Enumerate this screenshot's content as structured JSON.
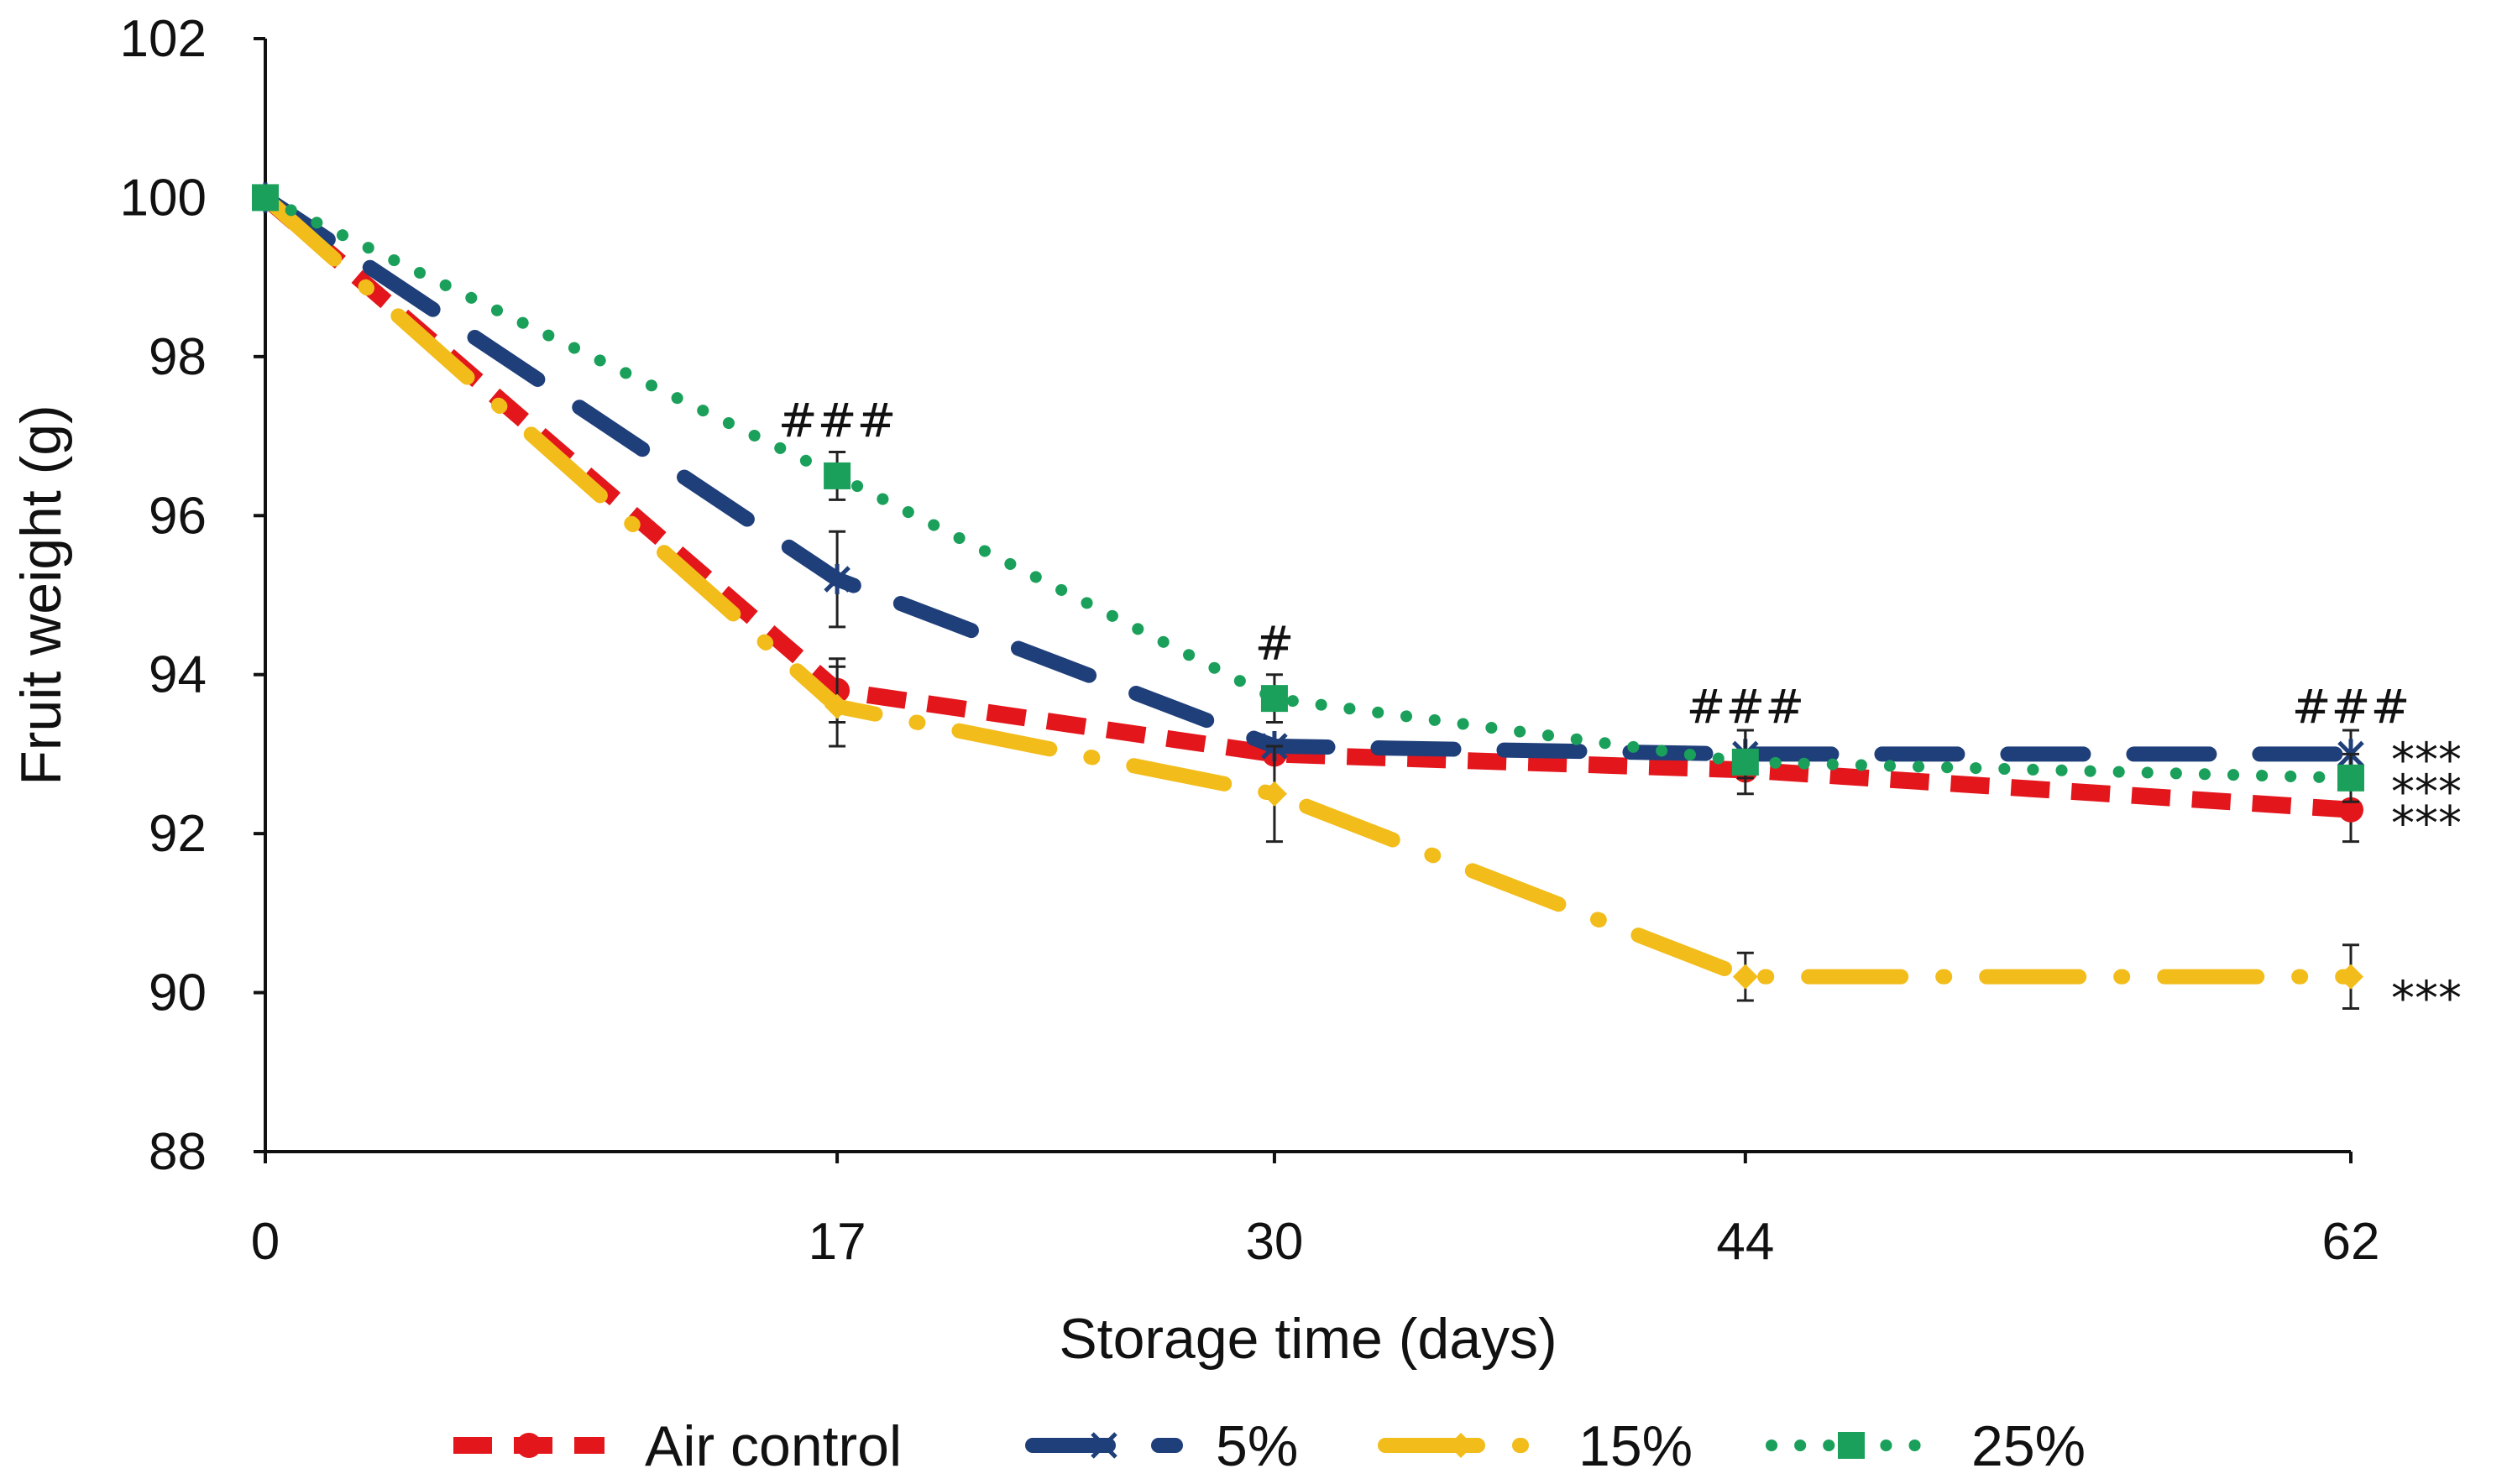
{
  "chart_data": {
    "type": "line",
    "title": "",
    "xlabel": "Storage time (days)",
    "ylabel": "Fruit weight (g)",
    "x": [
      0,
      17,
      30,
      44,
      62
    ],
    "x_tick_labels": [
      "0",
      "17",
      "30",
      "44",
      "62"
    ],
    "ylim": [
      88,
      102
    ],
    "y_ticks": [
      88,
      90,
      92,
      94,
      96,
      98,
      100,
      102
    ],
    "y_tick_labels": [
      "88",
      "90",
      "92",
      "94",
      "96",
      "98",
      "100",
      "102"
    ],
    "grid": false,
    "legend_position": "bottom",
    "series": [
      {
        "name": "Air control",
        "color": "#e3161c",
        "marker": "circle",
        "line_style": "dash",
        "values": [
          100,
          93.8,
          93.0,
          92.8,
          92.3
        ],
        "errors": [
          0,
          0.4,
          0.0,
          0.0,
          0.4
        ]
      },
      {
        "name": "5%",
        "color": "#1f3f7a",
        "marker": "x",
        "line_style": "long-dash",
        "values": [
          100,
          95.2,
          93.1,
          93.0,
          93.0
        ],
        "errors": [
          0,
          0.6,
          0.0,
          0.3,
          0.3
        ]
      },
      {
        "name": "15%",
        "color": "#f2bc1a",
        "marker": "diamond",
        "line_style": "long-dash-dot",
        "values": [
          100,
          93.6,
          92.5,
          90.2,
          90.2
        ],
        "errors": [
          0,
          0.5,
          0.6,
          0.3,
          0.4
        ]
      },
      {
        "name": "25%",
        "color": "#1aa05a",
        "marker": "square",
        "line_style": "dot",
        "values": [
          100,
          96.5,
          93.7,
          92.9,
          92.7
        ],
        "errors": [
          0,
          0.3,
          0.3,
          0.4,
          0.3
        ]
      }
    ],
    "annotations": [
      {
        "text": "###",
        "x": 17,
        "y": 97.2
      },
      {
        "text": "#",
        "x": 30,
        "y": 94.4
      },
      {
        "text": "###",
        "x": 44,
        "y": 93.6
      },
      {
        "text": "###",
        "x": 62,
        "y": 93.6
      },
      {
        "text": "***",
        "x": 62,
        "y": 93.0,
        "side": "right"
      },
      {
        "text": "***",
        "x": 62,
        "y": 92.6,
        "side": "right"
      },
      {
        "text": "***",
        "x": 62,
        "y": 92.2,
        "side": "right"
      },
      {
        "text": "***",
        "x": 62,
        "y": 90.0,
        "side": "right"
      }
    ]
  }
}
